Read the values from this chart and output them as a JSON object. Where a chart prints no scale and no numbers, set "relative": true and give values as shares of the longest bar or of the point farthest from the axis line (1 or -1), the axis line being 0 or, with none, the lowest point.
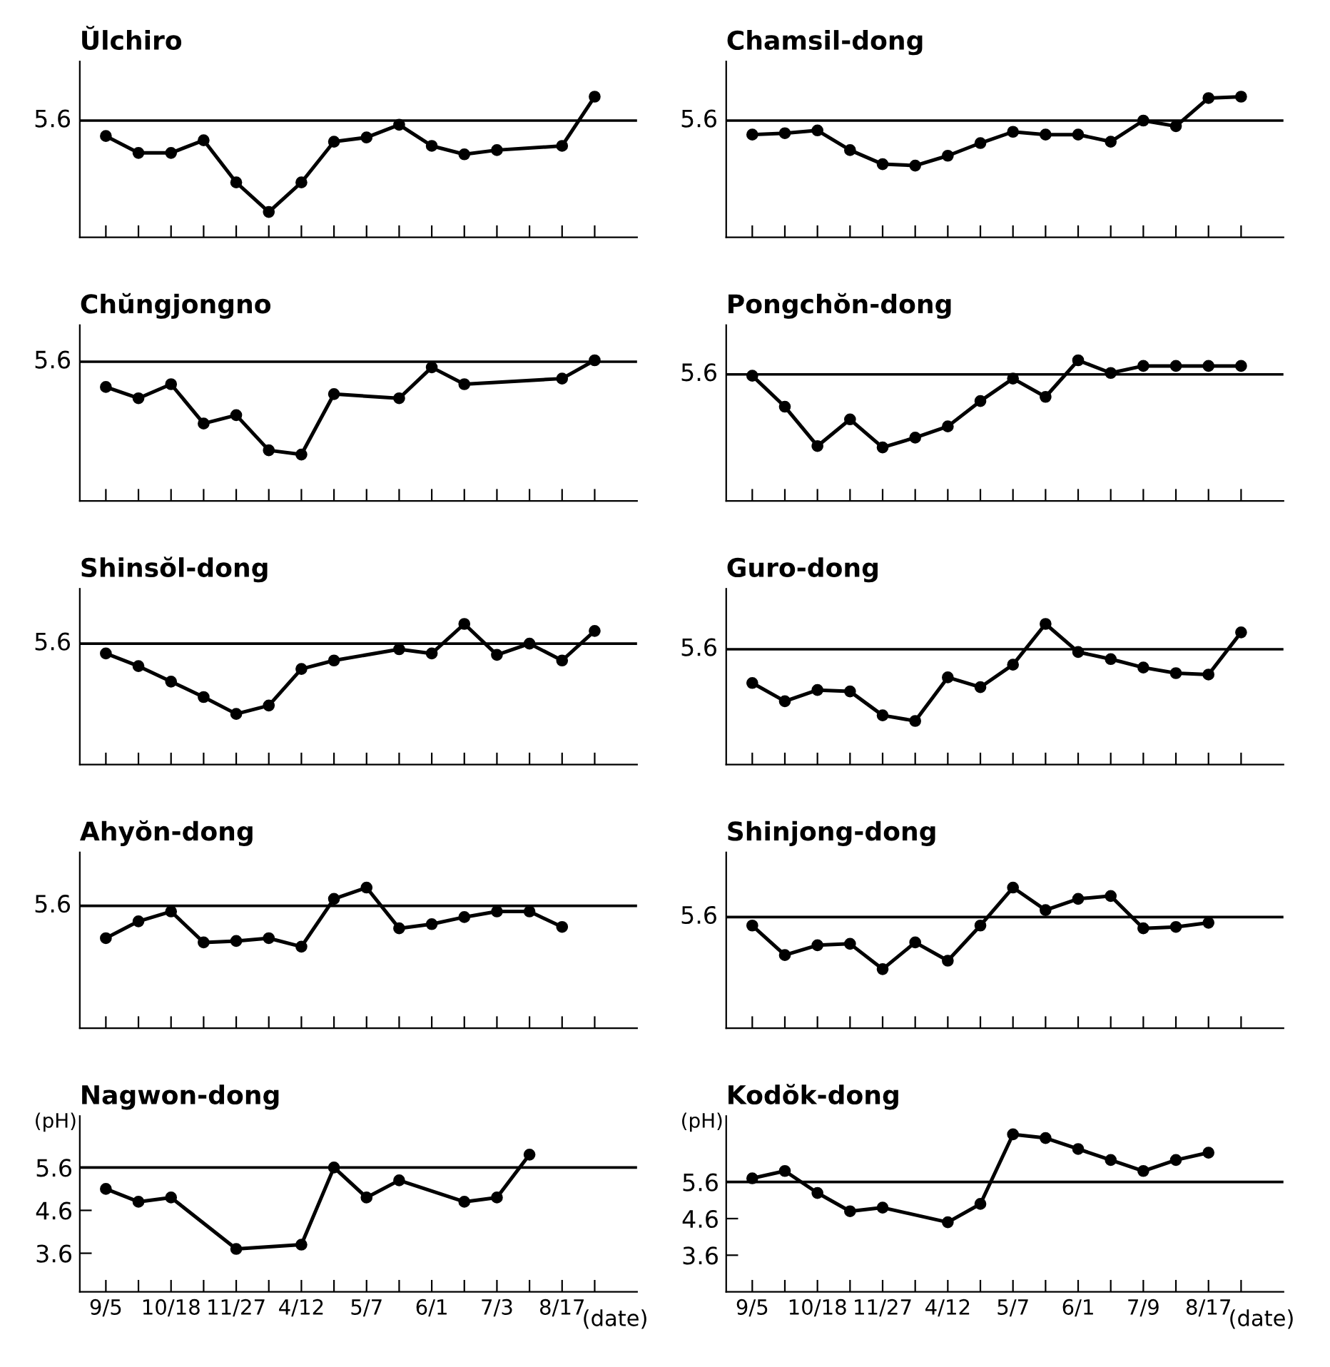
{
  "chart_data": [
    {
      "type": "line",
      "title": "Ŭlchiro",
      "relative": true,
      "marker": "circle",
      "line_style": "solid",
      "annotations": [
        "5.6"
      ],
      "categories": [
        null,
        null,
        null,
        null,
        null,
        null,
        null,
        null,
        null,
        null,
        null,
        null,
        null,
        null,
        null,
        null
      ],
      "series": [
        {
          "color": "#000000",
          "values": [
            0.72,
            0.6,
            0.6,
            0.69,
            0.39,
            0.18,
            0.39,
            0.68,
            0.71,
            0.8,
            0.65,
            0.59,
            0.62,
            null,
            0.65,
            1
          ]
        }
      ],
      "ref_lines": [
        {
          "axis": "y",
          "value": 0.83
        }
      ]
    },
    {
      "type": "line",
      "title": "Chamsil-dong",
      "relative": true,
      "marker": "circle",
      "line_style": "solid",
      "annotations": [
        "5.6"
      ],
      "categories": [
        null,
        null,
        null,
        null,
        null,
        null,
        null,
        null,
        null,
        null,
        null,
        null,
        null,
        null,
        null,
        null
      ],
      "series": [
        {
          "color": "#000000",
          "values": [
            0.73,
            0.74,
            0.76,
            0.62,
            0.52,
            0.51,
            0.58,
            0.67,
            0.75,
            0.73,
            0.73,
            0.68,
            0.83,
            0.79,
            0.99,
            1
          ]
        }
      ],
      "ref_lines": [
        {
          "axis": "y",
          "value": 0.83
        }
      ]
    },
    {
      "type": "line",
      "title": "Chŭngjongno",
      "relative": true,
      "marker": "circle",
      "line_style": "solid",
      "annotations": [
        "5.6"
      ],
      "categories": [
        null,
        null,
        null,
        null,
        null,
        null,
        null,
        null,
        null,
        null,
        null,
        null,
        null,
        null,
        null,
        null
      ],
      "series": [
        {
          "color": "#000000",
          "values": [
            0.81,
            0.73,
            0.83,
            0.55,
            0.61,
            0.36,
            0.33,
            0.76,
            null,
            0.73,
            0.95,
            0.83,
            null,
            null,
            0.87,
            1
          ]
        }
      ],
      "ref_lines": [
        {
          "axis": "y",
          "value": 0.99
        }
      ]
    },
    {
      "type": "line",
      "title": "Pongchŏn-dong",
      "relative": true,
      "marker": "circle",
      "line_style": "solid",
      "annotations": [
        "5.6"
      ],
      "categories": [
        null,
        null,
        null,
        null,
        null,
        null,
        null,
        null,
        null,
        null,
        null,
        null,
        null,
        null,
        null,
        null
      ],
      "series": [
        {
          "color": "#000000",
          "values": [
            0.89,
            0.67,
            0.39,
            0.58,
            0.38,
            0.45,
            0.53,
            0.71,
            0.87,
            0.74,
            1,
            0.91,
            0.96,
            0.96,
            0.96,
            0.96
          ]
        }
      ],
      "ref_lines": [
        {
          "axis": "y",
          "value": 0.9
        }
      ]
    },
    {
      "type": "line",
      "title": "Shinsŏl-dong",
      "relative": true,
      "marker": "circle",
      "line_style": "solid",
      "annotations": [
        "5.6"
      ],
      "categories": [
        null,
        null,
        null,
        null,
        null,
        null,
        null,
        null,
        null,
        null,
        null,
        null,
        null,
        null,
        null,
        null
      ],
      "series": [
        {
          "color": "#000000",
          "values": [
            0.79,
            0.7,
            0.59,
            0.48,
            0.36,
            0.42,
            0.68,
            0.74,
            null,
            0.82,
            0.79,
            1,
            0.78,
            0.86,
            0.74,
            0.95
          ]
        }
      ],
      "ref_lines": [
        {
          "axis": "y",
          "value": 0.86
        }
      ]
    },
    {
      "type": "line",
      "title": "Guro-dong",
      "relative": true,
      "marker": "circle",
      "line_style": "solid",
      "annotations": [
        "5.6"
      ],
      "categories": [
        null,
        null,
        null,
        null,
        null,
        null,
        null,
        null,
        null,
        null,
        null,
        null,
        null,
        null,
        null,
        null
      ],
      "series": [
        {
          "color": "#000000",
          "values": [
            0.58,
            0.45,
            0.53,
            0.52,
            0.35,
            0.31,
            0.62,
            0.55,
            0.71,
            1,
            0.8,
            0.75,
            0.69,
            0.65,
            0.64,
            0.94
          ]
        }
      ],
      "ref_lines": [
        {
          "axis": "y",
          "value": 0.82
        }
      ]
    },
    {
      "type": "line",
      "title": "Ahyŏn-dong",
      "relative": true,
      "marker": "circle",
      "line_style": "solid",
      "annotations": [
        "5.6"
      ],
      "categories": [
        null,
        null,
        null,
        null,
        null,
        null,
        null,
        null,
        null,
        null,
        null,
        null,
        null,
        null,
        null,
        null
      ],
      "series": [
        {
          "color": "#000000",
          "values": [
            0.64,
            0.76,
            0.83,
            0.61,
            0.62,
            0.64,
            0.58,
            0.92,
            1,
            0.71,
            0.74,
            0.79,
            0.83,
            0.83,
            0.72,
            null
          ]
        }
      ],
      "ref_lines": [
        {
          "axis": "y",
          "value": 0.87
        }
      ]
    },
    {
      "type": "line",
      "title": "Shinjong-dong",
      "relative": true,
      "marker": "circle",
      "line_style": "solid",
      "annotations": [
        "5.6"
      ],
      "categories": [
        null,
        null,
        null,
        null,
        null,
        null,
        null,
        null,
        null,
        null,
        null,
        null,
        null,
        null,
        null,
        null
      ],
      "series": [
        {
          "color": "#000000",
          "values": [
            0.73,
            0.52,
            0.59,
            0.6,
            0.42,
            0.61,
            0.48,
            0.73,
            1,
            0.84,
            0.92,
            0.94,
            0.71,
            0.72,
            0.75,
            null
          ]
        }
      ],
      "ref_lines": [
        {
          "axis": "y",
          "value": 0.79
        }
      ]
    },
    {
      "type": "line",
      "title": "Nagwon-dong",
      "ylabel": "(pH)",
      "xlabel": "(date)",
      "marker": "circle",
      "line_style": "solid",
      "categories": [
        "9/5",
        null,
        "10/18",
        null,
        "11/27",
        null,
        "4/12",
        null,
        "5/7",
        null,
        "6/1",
        null,
        "7/3",
        null,
        "8/17",
        null
      ],
      "ylim": [
        2.7,
        6.8
      ],
      "yticks": [
        3.6,
        4.6,
        5.6
      ],
      "series": [
        {
          "color": "#000000",
          "values": [
            5.1,
            4.8,
            4.9,
            null,
            3.7,
            null,
            3.8,
            5.6,
            4.9,
            5.3,
            null,
            4.8,
            4.9,
            5.9,
            null,
            null
          ]
        }
      ],
      "ref_lines": [
        {
          "axis": "y",
          "value": 5.6
        }
      ]
    },
    {
      "type": "line",
      "title": "Kodŏk-dong",
      "ylabel": "(pH)",
      "xlabel": "(date)",
      "marker": "circle",
      "line_style": "solid",
      "categories": [
        "9/5",
        null,
        "10/18",
        null,
        "11/27",
        null,
        "4/12",
        null,
        "5/7",
        null,
        "6/1",
        null,
        "7/9",
        null,
        "8/17",
        null
      ],
      "ylim": [
        2.6,
        7.4
      ],
      "yticks": [
        3.6,
        4.6,
        5.6
      ],
      "series": [
        {
          "color": "#000000",
          "values": [
            5.7,
            5.9,
            5.3,
            4.8,
            4.9,
            null,
            4.5,
            5.0,
            6.9,
            6.8,
            6.5,
            6.2,
            5.9,
            6.2,
            6.4,
            null
          ]
        }
      ],
      "ref_lines": [
        {
          "axis": "y",
          "value": 5.6
        }
      ]
    }
  ]
}
